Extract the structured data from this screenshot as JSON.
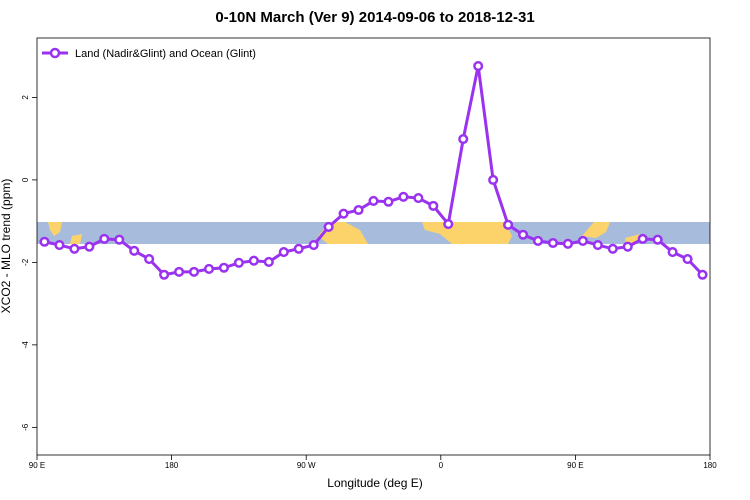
{
  "chart_data": {
    "type": "line",
    "title": "0-10N March (Ver 9)   2014-09-06 to 2018-12-31",
    "x_label": "Longitude (deg E)",
    "y_label": "XCO2 - MLO trend (ppm)",
    "legend_position": "upper left",
    "xlim": [
      90,
      540
    ],
    "ylim": [
      -6.67,
      3.44
    ],
    "xticks": [
      {
        "value": 90,
        "label": "90 E"
      },
      {
        "value": 180,
        "label": "180"
      },
      {
        "value": 270,
        "label": "90 W"
      },
      {
        "value": 360,
        "label": "0"
      },
      {
        "value": 450,
        "label": "90 E"
      },
      {
        "value": 540,
        "label": "180"
      }
    ],
    "yticks": [
      2,
      0,
      -2,
      -4,
      -6
    ],
    "x": [
      95,
      105,
      115,
      125,
      135,
      145,
      155,
      165,
      175,
      185,
      195,
      205,
      215,
      225,
      235,
      245,
      255,
      265,
      275,
      285,
      295,
      305,
      315,
      325,
      335,
      345,
      355,
      365,
      375,
      385,
      395,
      405,
      415,
      425,
      435,
      445,
      455,
      465,
      475,
      485,
      495,
      505,
      515,
      525,
      535
    ],
    "series": [
      {
        "name": "Land (Nadir&Glint) and Ocean (Glint)",
        "color": "#9a32f0",
        "values": [
          -1.5,
          -1.58,
          -1.67,
          -1.62,
          -1.43,
          -1.45,
          -1.72,
          -1.92,
          -2.3,
          -2.23,
          -2.23,
          -2.16,
          -2.13,
          -2.01,
          -1.96,
          -1.99,
          -1.75,
          -1.67,
          -1.58,
          -1.14,
          -0.82,
          -0.73,
          -0.51,
          -0.53,
          -0.41,
          -0.44,
          -0.63,
          -1.07,
          0.99,
          2.76,
          0.0,
          -1.09,
          -1.33,
          -1.48,
          -1.53,
          -1.55,
          -1.48,
          -1.58,
          -1.67,
          -1.62,
          -1.43,
          -1.45,
          -1.75,
          -1.92,
          -2.3
        ]
      }
    ]
  }
}
